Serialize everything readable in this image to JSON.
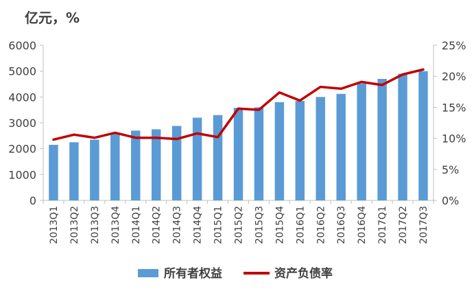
{
  "unit_label": "亿元，%",
  "chart_data": {
    "type": "bar",
    "categories": [
      "2013Q1",
      "2013Q2",
      "2013Q3",
      "2013Q4",
      "2014Q1",
      "2014Q2",
      "2014Q3",
      "2014Q4",
      "2015Q1",
      "2015Q2",
      "2015Q3",
      "2015Q4",
      "2016Q1",
      "2016Q2",
      "2016Q3",
      "2016Q4",
      "2017Q1",
      "2017Q2",
      "2017Q3"
    ],
    "series": [
      {
        "name": "所有者权益",
        "type": "bar",
        "axis": "left",
        "color": "#5b9bd5",
        "values": [
          2150,
          2250,
          2350,
          2600,
          2700,
          2750,
          2880,
          3200,
          3300,
          3580,
          3600,
          3800,
          3850,
          4000,
          4120,
          4520,
          4700,
          4900,
          5000
        ]
      },
      {
        "name": "资产负债率",
        "type": "line",
        "axis": "right",
        "color": "#c00000",
        "values": [
          9.8,
          10.6,
          10.1,
          10.9,
          10.1,
          10.1,
          9.9,
          10.8,
          10.2,
          14.8,
          14.6,
          17.4,
          16.1,
          18.3,
          18.0,
          19.1,
          18.6,
          20.3,
          21.1
        ]
      }
    ],
    "y_left": {
      "min": 0,
      "max": 6000,
      "ticks": [
        "0",
        "1000",
        "2000",
        "3000",
        "4000",
        "5000",
        "6000"
      ]
    },
    "y_right": {
      "min": 0,
      "max": 25,
      "ticks": [
        "0%",
        "5%",
        "10%",
        "15%",
        "20%",
        "25%"
      ]
    },
    "grid": false,
    "legend_position": "bottom"
  }
}
